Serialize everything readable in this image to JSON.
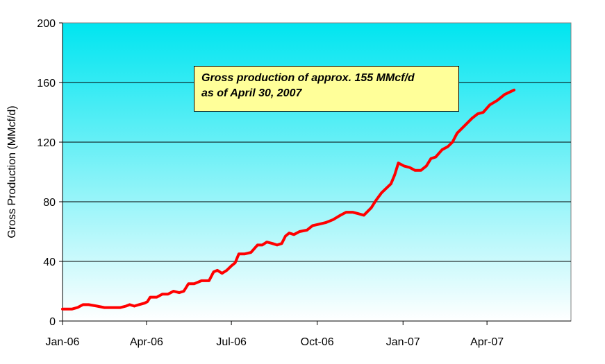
{
  "chart_data": {
    "type": "line",
    "title": "",
    "xlabel": "",
    "ylabel": "Gross Production (MMcf/d)",
    "ylim": [
      0,
      200
    ],
    "yticks": [
      "0",
      "40",
      "80",
      "120",
      "160",
      "200"
    ],
    "xlim": [
      "2006-01-01",
      "2007-06-30"
    ],
    "xticks": [
      {
        "date": "2006-01-01",
        "label": "Jan-06"
      },
      {
        "date": "2006-04-01",
        "label": "Apr-06"
      },
      {
        "date": "2006-07-01",
        "label": "Jul-06"
      },
      {
        "date": "2006-10-01",
        "label": "Oct-06"
      },
      {
        "date": "2007-01-01",
        "label": "Jan-07"
      },
      {
        "date": "2007-04-01",
        "label": "Apr-07"
      }
    ],
    "grid": true,
    "line_color": "#ff0000",
    "background_gradient": [
      "#00e5f0",
      "#ffffff"
    ],
    "series": [
      {
        "name": "",
        "points": [
          [
            "2006-01-01",
            8
          ],
          [
            "2006-01-11",
            8
          ],
          [
            "2006-01-17",
            9
          ],
          [
            "2006-01-23",
            11
          ],
          [
            "2006-01-29",
            11
          ],
          [
            "2006-02-07",
            10
          ],
          [
            "2006-02-15",
            9
          ],
          [
            "2006-02-23",
            9
          ],
          [
            "2006-03-04",
            9
          ],
          [
            "2006-03-10",
            10
          ],
          [
            "2006-03-14",
            11
          ],
          [
            "2006-03-19",
            10
          ],
          [
            "2006-03-24",
            11
          ],
          [
            "2006-03-30",
            12
          ],
          [
            "2006-04-02",
            13
          ],
          [
            "2006-04-05",
            16
          ],
          [
            "2006-04-12",
            16
          ],
          [
            "2006-04-18",
            18
          ],
          [
            "2006-04-24",
            18
          ],
          [
            "2006-04-30",
            20
          ],
          [
            "2006-05-06",
            19
          ],
          [
            "2006-05-11",
            20
          ],
          [
            "2006-05-16",
            25
          ],
          [
            "2006-05-22",
            25
          ],
          [
            "2006-05-30",
            27
          ],
          [
            "2006-06-07",
            27
          ],
          [
            "2006-06-12",
            33
          ],
          [
            "2006-06-16",
            34
          ],
          [
            "2006-06-21",
            32
          ],
          [
            "2006-06-26",
            34
          ],
          [
            "2006-07-01",
            37
          ],
          [
            "2006-07-05",
            39
          ],
          [
            "2006-07-09",
            45
          ],
          [
            "2006-07-15",
            45
          ],
          [
            "2006-07-22",
            46
          ],
          [
            "2006-07-29",
            51
          ],
          [
            "2006-08-03",
            51
          ],
          [
            "2006-08-08",
            53
          ],
          [
            "2006-08-14",
            52
          ],
          [
            "2006-08-19",
            51
          ],
          [
            "2006-08-24",
            52
          ],
          [
            "2006-08-28",
            57
          ],
          [
            "2006-09-01",
            59
          ],
          [
            "2006-09-06",
            58
          ],
          [
            "2006-09-12",
            60
          ],
          [
            "2006-09-20",
            61
          ],
          [
            "2006-09-26",
            64
          ],
          [
            "2006-10-03",
            65
          ],
          [
            "2006-10-10",
            66
          ],
          [
            "2006-10-18",
            68
          ],
          [
            "2006-10-26",
            71
          ],
          [
            "2006-11-01",
            73
          ],
          [
            "2006-11-08",
            73
          ],
          [
            "2006-11-14",
            72
          ],
          [
            "2006-11-20",
            71
          ],
          [
            "2006-11-28",
            76
          ],
          [
            "2006-12-03",
            81
          ],
          [
            "2006-12-09",
            86
          ],
          [
            "2006-12-14",
            89
          ],
          [
            "2006-12-19",
            92
          ],
          [
            "2006-12-23",
            98
          ],
          [
            "2006-12-27",
            106
          ],
          [
            "2007-01-02",
            104
          ],
          [
            "2007-01-08",
            103
          ],
          [
            "2007-01-14",
            101
          ],
          [
            "2007-01-20",
            101
          ],
          [
            "2007-01-26",
            104
          ],
          [
            "2007-01-31",
            109
          ],
          [
            "2007-02-05",
            110
          ],
          [
            "2007-02-12",
            115
          ],
          [
            "2007-02-18",
            117
          ],
          [
            "2007-02-23",
            120
          ],
          [
            "2007-02-28",
            126
          ],
          [
            "2007-03-08",
            131
          ],
          [
            "2007-03-16",
            136
          ],
          [
            "2007-03-22",
            139
          ],
          [
            "2007-03-28",
            140
          ],
          [
            "2007-04-04",
            145
          ],
          [
            "2007-04-12",
            148
          ],
          [
            "2007-04-20",
            152
          ],
          [
            "2007-04-30",
            155
          ]
        ]
      }
    ],
    "annotation": {
      "lines": [
        "Gross production of approx. 155 MMcf/d",
        "as of April 30, 2007"
      ]
    }
  }
}
